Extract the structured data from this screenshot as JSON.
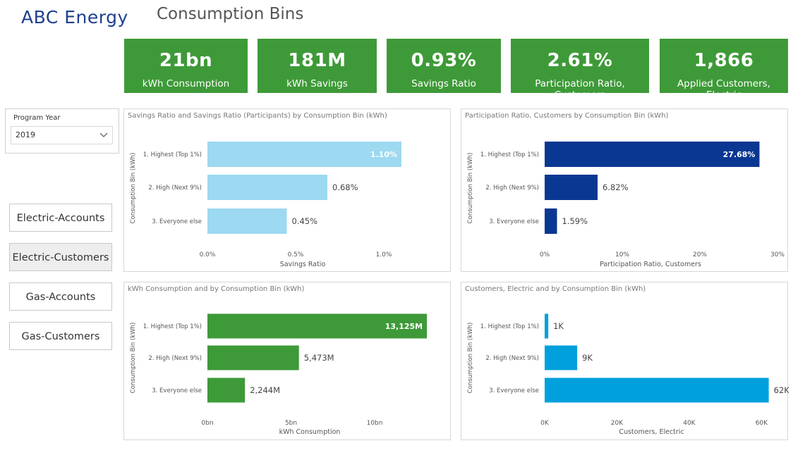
{
  "header": {
    "brand": "ABC Energy",
    "title": "Consumption Bins"
  },
  "kpis": [
    {
      "value": "21bn",
      "label": "kWh Consumption"
    },
    {
      "value": "181M",
      "label": "kWh Savings"
    },
    {
      "value": "0.93%",
      "label": "Savings Ratio"
    },
    {
      "value": "2.61%",
      "label": "Participation Ratio, Customers"
    },
    {
      "value": "1,866",
      "label": "Applied Customers, Electric"
    }
  ],
  "slicer": {
    "label": "Program Year",
    "value": "2019",
    "icon": "chevron-down-icon"
  },
  "nav": [
    {
      "label": "Electric-Accounts",
      "active": false
    },
    {
      "label": "Electric-Customers",
      "active": true
    },
    {
      "label": "Gas-Accounts",
      "active": false
    },
    {
      "label": "Gas-Customers",
      "active": false
    }
  ],
  "colors": {
    "brand": "#1f3f8f",
    "kpi": "#3e9a38",
    "light_blue": "#9dd9f0",
    "dark_blue": "#0a3791",
    "green": "#3e9a38",
    "cyan": "#00a0dc"
  },
  "chart_data": [
    {
      "type": "bar",
      "orientation": "horizontal",
      "title": "Savings Ratio and Savings Ratio (Participants) by Consumption Bin (kWh)",
      "categories": [
        "1. Highest (Top 1%)",
        "2. High (Next 9%)",
        "3. Everyone else"
      ],
      "values": [
        1.1,
        0.68,
        0.45
      ],
      "data_labels": [
        "1.10%",
        "0.68%",
        "0.45%"
      ],
      "xlabel": "Savings Ratio",
      "ylabel": "Consumption Bin (kWh)",
      "xlim": [
        0,
        1.2
      ],
      "ticks": [
        0,
        0.5,
        1.0
      ],
      "tick_labels": [
        "0.0%",
        "0.5%",
        "1.0%"
      ],
      "color": "#9dd9f0",
      "grid": false
    },
    {
      "type": "bar",
      "orientation": "horizontal",
      "title": "Participation Ratio, Customers by Consumption Bin (kWh)",
      "categories": [
        "1. Highest (Top 1%)",
        "2. High (Next 9%)",
        "3. Everyone else"
      ],
      "values": [
        27.68,
        6.82,
        1.59
      ],
      "data_labels": [
        "27.68%",
        "6.82%",
        "1.59%"
      ],
      "xlabel": "Participation Ratio, Customers",
      "ylabel": "Consumption Bin (kWh)",
      "xlim": [
        0,
        30
      ],
      "ticks": [
        0,
        10,
        20,
        30
      ],
      "tick_labels": [
        "0%",
        "10%",
        "20%",
        "30%"
      ],
      "color": "#0a3791",
      "grid": false
    },
    {
      "type": "bar",
      "orientation": "horizontal",
      "title": "kWh Consumption and by Consumption Bin (kWh)",
      "categories": [
        "1. Highest (Top 1%)",
        "2. High (Next 9%)",
        "3. Everyone else"
      ],
      "values": [
        13125,
        5473,
        2244
      ],
      "data_labels": [
        "13,125M",
        "5,473M",
        "2,244M"
      ],
      "xlabel": "kWh Consumption",
      "ylabel": "Consumption Bin (kWh)",
      "xlim": [
        0,
        13500
      ],
      "ticks": [
        0,
        5000,
        10000
      ],
      "tick_labels": [
        "0bn",
        "5bn",
        "10bn"
      ],
      "color": "#3e9a38",
      "grid": false
    },
    {
      "type": "bar",
      "orientation": "horizontal",
      "title": "Customers, Electric and by Consumption Bin (kWh)",
      "categories": [
        "1. Highest (Top 1%)",
        "2. High (Next 9%)",
        "3. Everyone else"
      ],
      "values": [
        1000,
        9000,
        62000
      ],
      "data_labels": [
        "1K",
        "9K",
        "62K"
      ],
      "xlabel": "Customers, Electric",
      "ylabel": "Consumption Bin (kWh)",
      "xlim": [
        0,
        65000
      ],
      "ticks": [
        0,
        20000,
        40000,
        60000
      ],
      "tick_labels": [
        "0K",
        "20K",
        "40K",
        "60K"
      ],
      "color": "#00a0dc",
      "grid": false
    }
  ]
}
